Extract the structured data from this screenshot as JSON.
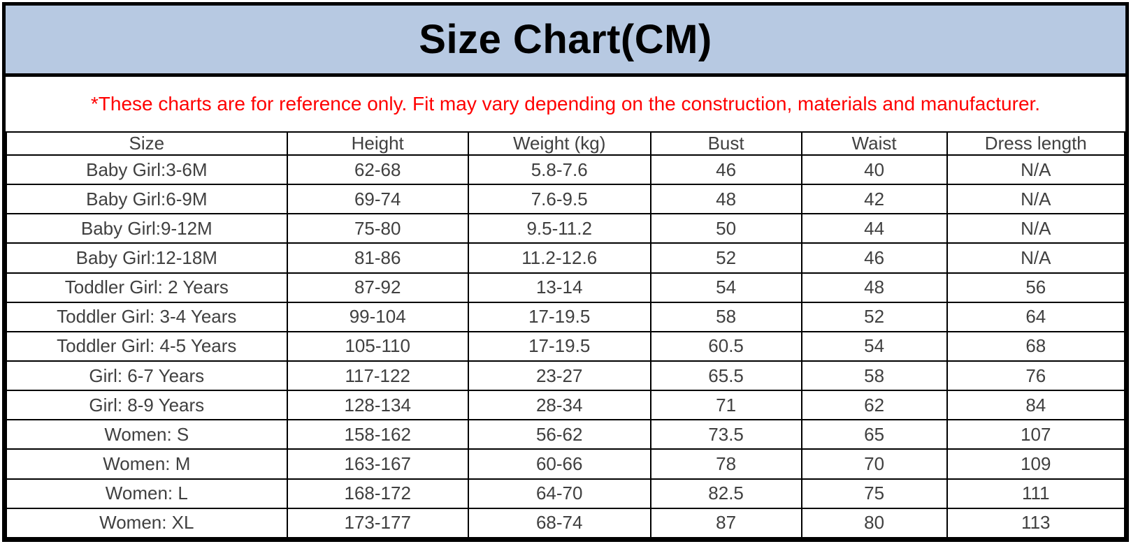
{
  "page": {
    "title": "Size Chart(CM)",
    "disclaimer": "*These charts are for reference only. Fit may vary depending on the construction, materials and manufacturer."
  },
  "colors": {
    "banner_bg": "#b7c9e2",
    "banner_text": "#000000",
    "disclaimer_text": "#ff0000",
    "table_text": "#404040",
    "border": "#000000"
  },
  "chart_data": {
    "type": "table",
    "title": "Size Chart(CM)",
    "unit": "CM",
    "columns": [
      "Size",
      "Height",
      "Weight (kg)",
      "Bust",
      "Waist",
      "Dress length"
    ],
    "rows": [
      [
        "Baby Girl:3-6M",
        "62-68",
        "5.8-7.6",
        "46",
        "40",
        "N/A"
      ],
      [
        "Baby Girl:6-9M",
        "69-74",
        "7.6-9.5",
        "48",
        "42",
        "N/A"
      ],
      [
        "Baby Girl:9-12M",
        "75-80",
        "9.5-11.2",
        "50",
        "44",
        "N/A"
      ],
      [
        "Baby Girl:12-18M",
        "81-86",
        "11.2-12.6",
        "52",
        "46",
        "N/A"
      ],
      [
        "Toddler Girl: 2 Years",
        "87-92",
        "13-14",
        "54",
        "48",
        "56"
      ],
      [
        "Toddler Girl: 3-4 Years",
        "99-104",
        "17-19.5",
        "58",
        "52",
        "64"
      ],
      [
        "Toddler Girl: 4-5 Years",
        "105-110",
        "17-19.5",
        "60.5",
        "54",
        "68"
      ],
      [
        "Girl: 6-7 Years",
        "117-122",
        "23-27",
        "65.5",
        "58",
        "76"
      ],
      [
        "Girl: 8-9 Years",
        "128-134",
        "28-34",
        "71",
        "62",
        "84"
      ],
      [
        "Women: S",
        "158-162",
        "56-62",
        "73.5",
        "65",
        "107"
      ],
      [
        "Women: M",
        "163-167",
        "60-66",
        "78",
        "70",
        "109"
      ],
      [
        "Women: L",
        "168-172",
        "64-70",
        "82.5",
        "75",
        "111"
      ],
      [
        "Women: XL",
        "173-177",
        "68-74",
        "87",
        "80",
        "113"
      ]
    ]
  }
}
